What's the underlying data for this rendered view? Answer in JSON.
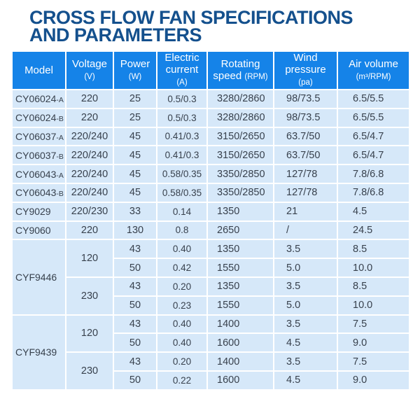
{
  "title": {
    "line1": "CROSS FLOW FAN SPECIFICATIONS",
    "line2": "AND PARAMETERS"
  },
  "colors": {
    "title": "#14508D",
    "header_bg": "#1583E8",
    "header_text": "#FFFFFF",
    "cell_bg": "#D6E8F9",
    "cell_text": "#38414D",
    "border": "#FFFFFF"
  },
  "table": {
    "columns": [
      {
        "name": "model",
        "lines": [
          [
            "Model"
          ]
        ]
      },
      {
        "name": "voltage",
        "lines": [
          [
            "Voltage"
          ],
          [
            "small:(V)"
          ]
        ]
      },
      {
        "name": "power",
        "lines": [
          [
            "Power"
          ],
          [
            "small:(W)"
          ]
        ]
      },
      {
        "name": "electric-current",
        "lines": [
          [
            "Electric"
          ],
          [
            "current"
          ],
          [
            "small:(A)"
          ]
        ]
      },
      {
        "name": "rotating-speed",
        "lines": [
          [
            "Rotating"
          ],
          [
            "speed ",
            "small:(RPM)"
          ]
        ]
      },
      {
        "name": "wind-pressure",
        "lines": [
          [
            "Wind"
          ],
          [
            "pressure"
          ],
          [
            "small:(pa)"
          ]
        ]
      },
      {
        "name": "air-volume",
        "lines": [
          [
            "Air volume"
          ],
          [
            "small:(m³/RPM)"
          ]
        ]
      }
    ],
    "rows": [
      {
        "cells": [
          {
            "t": "CY06024",
            "s": "-A"
          },
          {
            "t": "220"
          },
          {
            "t": "25"
          },
          {
            "t": "0.5/0.3"
          },
          {
            "t": "3280/2860"
          },
          {
            "t": "98/73.5"
          },
          {
            "t": "6.5/5.5"
          }
        ]
      },
      {
        "cells": [
          {
            "t": "CY06024",
            "s": "-B"
          },
          {
            "t": "220"
          },
          {
            "t": "25"
          },
          {
            "t": "0.5/0.3"
          },
          {
            "t": "3280/2860"
          },
          {
            "t": "98/73.5"
          },
          {
            "t": "6.5/5.5"
          }
        ]
      },
      {
        "cells": [
          {
            "t": "CY06037",
            "s": "-A"
          },
          {
            "t": "220/240"
          },
          {
            "t": "45"
          },
          {
            "t": "0.41/0.3"
          },
          {
            "t": "3150/2650"
          },
          {
            "t": "63.7/50"
          },
          {
            "t": "6.5/4.7"
          }
        ]
      },
      {
        "cells": [
          {
            "t": "CY06037",
            "s": "-B"
          },
          {
            "t": "220/240"
          },
          {
            "t": "45"
          },
          {
            "t": "0.41/0.3"
          },
          {
            "t": "3150/2650"
          },
          {
            "t": "63.7/50"
          },
          {
            "t": "6.5/4.7"
          }
        ]
      },
      {
        "cells": [
          {
            "t": "CY06043",
            "s": "-A"
          },
          {
            "t": "220/240"
          },
          {
            "t": "45"
          },
          {
            "t": "0.58/0.35"
          },
          {
            "t": "3350/2850"
          },
          {
            "t": "127/78"
          },
          {
            "t": "7.8/6.8"
          }
        ]
      },
      {
        "cells": [
          {
            "t": "CY06043",
            "s": "-B"
          },
          {
            "t": "220/240"
          },
          {
            "t": "45"
          },
          {
            "t": "0.58/0.35"
          },
          {
            "t": "3350/2850"
          },
          {
            "t": "127/78"
          },
          {
            "t": "7.8/6.8"
          }
        ]
      },
      {
        "cells": [
          {
            "t": "CY9029"
          },
          {
            "t": "220/230"
          },
          {
            "t": "33"
          },
          {
            "t": "0.14"
          },
          {
            "t": "1350"
          },
          {
            "t": "21"
          },
          {
            "t": "4.5"
          }
        ]
      },
      {
        "cells": [
          {
            "t": "CY9060"
          },
          {
            "t": "220"
          },
          {
            "t": "130"
          },
          {
            "t": "0.8"
          },
          {
            "t": "2650"
          },
          {
            "t": "/"
          },
          {
            "t": "24.5"
          }
        ]
      },
      {
        "cells": [
          {
            "t": "CYF9446",
            "rs": 4
          },
          {
            "t": "120",
            "rs": 2
          },
          {
            "t": "43"
          },
          {
            "t": "0.40"
          },
          {
            "t": "1350"
          },
          {
            "t": "3.5"
          },
          {
            "t": "8.5"
          }
        ]
      },
      {
        "cells": [
          {
            "t": "50"
          },
          {
            "t": "0.42"
          },
          {
            "t": "1550"
          },
          {
            "t": "5.0"
          },
          {
            "t": "10.0"
          }
        ]
      },
      {
        "cells": [
          {
            "t": "230",
            "rs": 2
          },
          {
            "t": "43"
          },
          {
            "t": "0.20"
          },
          {
            "t": "1350"
          },
          {
            "t": "3.5"
          },
          {
            "t": "8.5"
          }
        ]
      },
      {
        "cells": [
          {
            "t": "50"
          },
          {
            "t": "0.23"
          },
          {
            "t": "1550"
          },
          {
            "t": "5.0"
          },
          {
            "t": "10.0"
          }
        ]
      },
      {
        "cells": [
          {
            "t": "CYF9439",
            "rs": 4
          },
          {
            "t": "120",
            "rs": 2
          },
          {
            "t": "43"
          },
          {
            "t": "0.40"
          },
          {
            "t": "1400"
          },
          {
            "t": "3.5"
          },
          {
            "t": "7.5"
          }
        ]
      },
      {
        "cells": [
          {
            "t": "50"
          },
          {
            "t": "0.40"
          },
          {
            "t": "1600"
          },
          {
            "t": "4.5"
          },
          {
            "t": "9.0"
          }
        ]
      },
      {
        "cells": [
          {
            "t": "230",
            "rs": 2
          },
          {
            "t": "43"
          },
          {
            "t": "0.20"
          },
          {
            "t": "1400"
          },
          {
            "t": "3.5"
          },
          {
            "t": "7.5"
          }
        ]
      },
      {
        "cells": [
          {
            "t": "50"
          },
          {
            "t": "0.22"
          },
          {
            "t": "1600"
          },
          {
            "t": "4.5"
          },
          {
            "t": "9.0"
          }
        ]
      }
    ]
  }
}
